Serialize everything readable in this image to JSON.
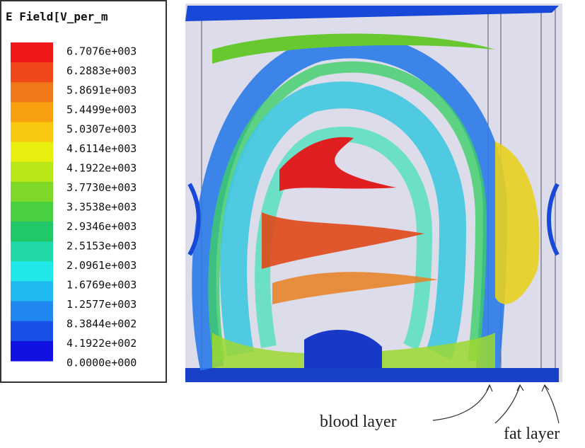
{
  "legend": {
    "title": "E Field[V_per_m",
    "labels": [
      "6.7076e+003",
      "6.2883e+003",
      "5.8691e+003",
      "5.4499e+003",
      "5.0307e+003",
      "4.6114e+003",
      "4.1922e+003",
      "3.7730e+003",
      "3.3538e+003",
      "2.9346e+003",
      "2.5153e+003",
      "2.0961e+003",
      "1.6769e+003",
      "1.2577e+003",
      "8.3844e+002",
      "4.1922e+002",
      "0.0000e+000"
    ],
    "colors": [
      "#f01818",
      "#f04818",
      "#f07818",
      "#f8a010",
      "#f8c810",
      "#e8f010",
      "#b8e818",
      "#80d828",
      "#48d040",
      "#20c868",
      "#20d8a8",
      "#20e8e8",
      "#20b8f0",
      "#2088f0",
      "#1850e8",
      "#1010e0"
    ]
  },
  "annotations": [
    "blood layer",
    "fat layer"
  ]
}
